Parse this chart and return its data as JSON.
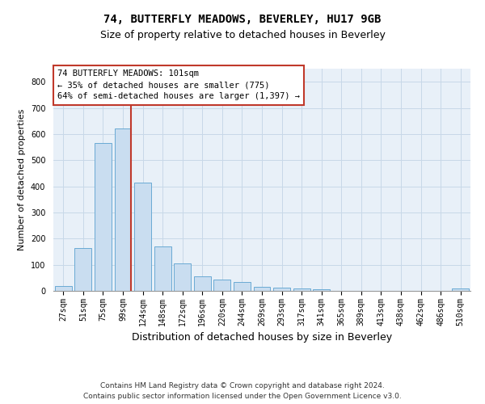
{
  "title": "74, BUTTERFLY MEADOWS, BEVERLEY, HU17 9GB",
  "subtitle": "Size of property relative to detached houses in Beverley",
  "xlabel": "Distribution of detached houses by size in Beverley",
  "ylabel": "Number of detached properties",
  "categories": [
    "27sqm",
    "51sqm",
    "75sqm",
    "99sqm",
    "124sqm",
    "148sqm",
    "172sqm",
    "196sqm",
    "220sqm",
    "244sqm",
    "269sqm",
    "293sqm",
    "317sqm",
    "341sqm",
    "365sqm",
    "389sqm",
    "413sqm",
    "438sqm",
    "462sqm",
    "486sqm",
    "510sqm"
  ],
  "values": [
    18,
    165,
    565,
    620,
    415,
    170,
    105,
    57,
    43,
    33,
    15,
    11,
    8,
    5,
    0,
    0,
    0,
    0,
    0,
    0,
    8
  ],
  "bar_color": "#c9ddf0",
  "bar_edge_color": "#6aaad4",
  "vline_x_index": 3,
  "vline_color": "#c0392b",
  "annotation_text": "74 BUTTERFLY MEADOWS: 101sqm\n← 35% of detached houses are smaller (775)\n64% of semi-detached houses are larger (1,397) →",
  "annotation_box_color": "white",
  "annotation_box_edge_color": "#c0392b",
  "ylim": [
    0,
    850
  ],
  "yticks": [
    0,
    100,
    200,
    300,
    400,
    500,
    600,
    700,
    800
  ],
  "grid_color": "#c8d8e8",
  "bg_color": "#e8f0f8",
  "footer": "Contains HM Land Registry data © Crown copyright and database right 2024.\nContains public sector information licensed under the Open Government Licence v3.0.",
  "title_fontsize": 10,
  "subtitle_fontsize": 9,
  "xlabel_fontsize": 9,
  "ylabel_fontsize": 8,
  "tick_fontsize": 7,
  "annotation_fontsize": 7.5,
  "footer_fontsize": 6.5
}
